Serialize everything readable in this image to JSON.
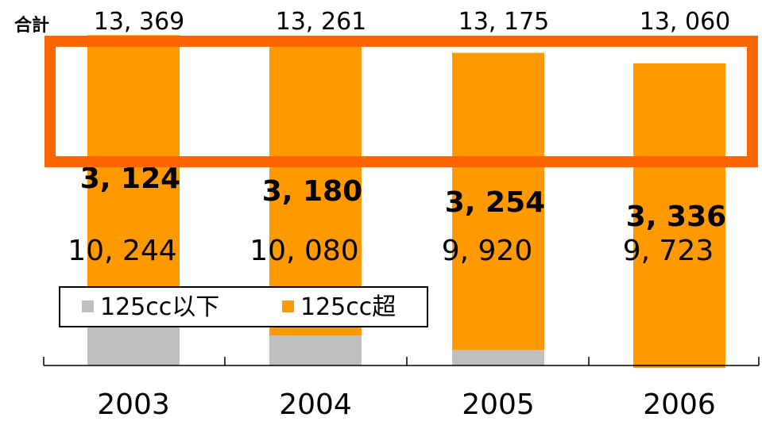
{
  "chart_data": {
    "type": "bar",
    "stacked": true,
    "categories": [
      "2003",
      "2004",
      "2005",
      "2006"
    ],
    "series": [
      {
        "name": "125cc以下",
        "values": [
          10244,
          10080,
          9920,
          9723
        ],
        "labels": [
          "10, 244",
          "10, 080",
          "9, 920",
          "9, 723"
        ],
        "color": "#bfbfbf"
      },
      {
        "name": "125cc超",
        "values": [
          3124,
          3180,
          3254,
          3336
        ],
        "labels": [
          "3, 124",
          "3, 180",
          "3, 254",
          "3, 336"
        ],
        "color": "#ff9900"
      }
    ],
    "totals": {
      "label": "合計",
      "values": [
        13369,
        13261,
        13175,
        13060
      ],
      "labels": [
        "13, 369",
        "13, 261",
        "13, 175",
        "13, 060"
      ]
    },
    "y_visible_range": [
      9750,
      13700
    ],
    "highlight_color": "#ff6600",
    "legend_position": "bottom-left inside plot"
  }
}
